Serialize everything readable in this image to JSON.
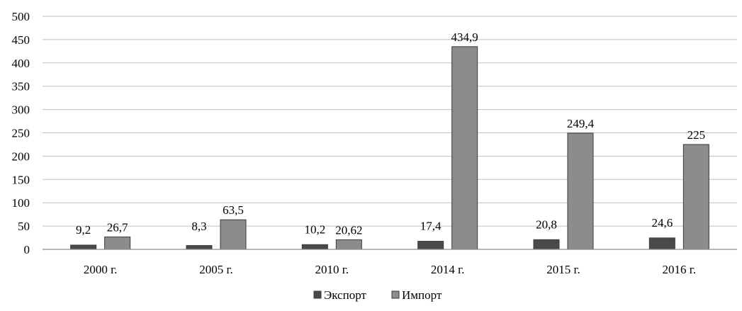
{
  "chart_data": {
    "type": "bar",
    "categories": [
      "2000 г.",
      "2005 г.",
      "2010 г.",
      "2014 г.",
      "2015 г.",
      "2016 г."
    ],
    "series": [
      {
        "name": "Экспорт",
        "values": [
          9.2,
          8.3,
          10.2,
          17.4,
          20.8,
          24.6
        ],
        "labels": [
          "9,2",
          "8,3",
          "10,2",
          "17,4",
          "20,8",
          "24,6"
        ],
        "color": "#4a4a4a"
      },
      {
        "name": "Импорт",
        "values": [
          26.7,
          63.5,
          20.62,
          434.9,
          249.4,
          225
        ],
        "labels": [
          "26,7",
          "63,5",
          "20,62",
          "434,9",
          "249,4",
          "225"
        ],
        "color": "#8c8c8c"
      }
    ],
    "ylim": [
      0,
      500
    ],
    "yticks": [
      0,
      50,
      100,
      150,
      200,
      250,
      300,
      350,
      400,
      450,
      500
    ],
    "grid": true,
    "legend": "bottom-center",
    "title": "",
    "xlabel": "",
    "ylabel": ""
  }
}
